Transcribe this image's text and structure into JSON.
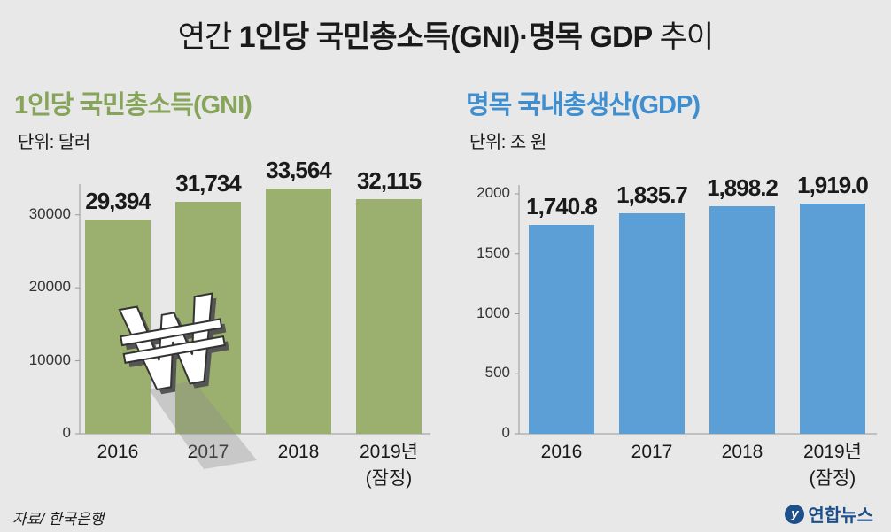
{
  "title": {
    "prefix": "연간 ",
    "bold": "1인당 국민총소득(GNI)·명목 GDP",
    "suffix": " 추이"
  },
  "source": "자료/ 한국은행",
  "brand": "연합뉴스",
  "colors": {
    "gni": "#9bb06f",
    "gdp": "#5b9fd6",
    "gni_title": "#86a55a",
    "gdp_title": "#3f8fd0"
  },
  "icon": "won-currency-icon",
  "chart_data": [
    {
      "type": "bar",
      "title": "1인당 국민총소득(GNI)",
      "unit": "단위: 달러",
      "categories": [
        "2016",
        "2017",
        "2018",
        "2019년\n(잠정)"
      ],
      "values": [
        29394,
        31734,
        33564,
        32115
      ],
      "value_labels": [
        "29,394",
        "31,734",
        "33,564",
        "32,115"
      ],
      "yticks": [
        "30000",
        "20000",
        "10000",
        "0"
      ],
      "ylim": [
        0,
        33000
      ]
    },
    {
      "type": "bar",
      "title": "명목 국내총생산(GDP)",
      "unit": "단위: 조 원",
      "categories": [
        "2016",
        "2017",
        "2018",
        "2019년\n(잠정)"
      ],
      "values": [
        1740.8,
        1835.7,
        1898.2,
        1919.0
      ],
      "value_labels": [
        "1,740.8",
        "1,835.7",
        "1,898.2",
        "1,919.0"
      ],
      "yticks": [
        "2000",
        "1500",
        "1000",
        "500",
        "0"
      ],
      "ylim": [
        0,
        2000
      ]
    }
  ]
}
